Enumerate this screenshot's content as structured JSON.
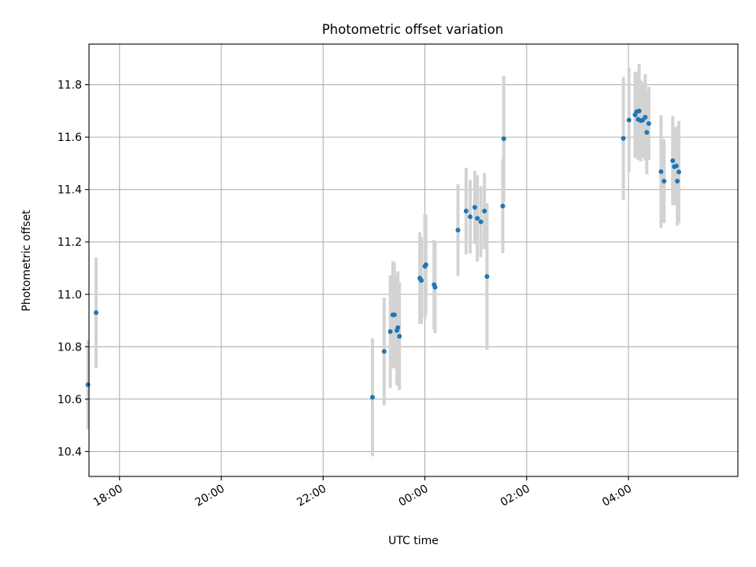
{
  "chart_data": {
    "type": "scatter",
    "title": "Photometric offset variation",
    "xlabel": "UTC time",
    "ylabel": "Photometric offset",
    "grid": true,
    "xlim": [
      -6.6,
      6.15
    ],
    "ylim": [
      10.305,
      11.955
    ],
    "x_ticks": [
      {
        "value": -6,
        "label": "18:00"
      },
      {
        "value": -4,
        "label": "20:00"
      },
      {
        "value": -2,
        "label": "22:00"
      },
      {
        "value": 0,
        "label": "00:00"
      },
      {
        "value": 2,
        "label": "02:00"
      },
      {
        "value": 4,
        "label": "04:00"
      }
    ],
    "y_ticks": [
      {
        "value": 10.4,
        "label": "10.4"
      },
      {
        "value": 10.6,
        "label": "10.6"
      },
      {
        "value": 10.8,
        "label": "10.8"
      },
      {
        "value": 11.0,
        "label": "11.0"
      },
      {
        "value": 11.2,
        "label": "11.2"
      },
      {
        "value": 11.4,
        "label": "11.4"
      },
      {
        "value": 11.6,
        "label": "11.6"
      },
      {
        "value": 11.8,
        "label": "11.8"
      }
    ],
    "x_unit": "hours relative to 00:00 UTC",
    "colors": {
      "point": "#1f77b4",
      "errorbar": "#d3d3d3",
      "grid": "#b0b0b0"
    },
    "points": [
      {
        "x": -6.62,
        "y": 10.655,
        "err": 0.17
      },
      {
        "x": -6.46,
        "y": 10.93,
        "err": 0.21
      },
      {
        "x": -1.03,
        "y": 10.607,
        "err": 0.225
      },
      {
        "x": -0.8,
        "y": 10.782,
        "err": 0.205
      },
      {
        "x": -0.68,
        "y": 10.858,
        "err": 0.215
      },
      {
        "x": -0.63,
        "y": 10.922,
        "err": 0.205
      },
      {
        "x": -0.6,
        "y": 10.922,
        "err": 0.2
      },
      {
        "x": -0.55,
        "y": 10.862,
        "err": 0.21
      },
      {
        "x": -0.53,
        "y": 10.873,
        "err": 0.215
      },
      {
        "x": -0.5,
        "y": 10.84,
        "err": 0.205
      },
      {
        "x": -0.1,
        "y": 11.062,
        "err": 0.175
      },
      {
        "x": -0.07,
        "y": 11.053,
        "err": 0.165
      },
      {
        "x": 0.0,
        "y": 11.107,
        "err": 0.2
      },
      {
        "x": 0.02,
        "y": 11.113,
        "err": 0.19
      },
      {
        "x": 0.18,
        "y": 11.037,
        "err": 0.17
      },
      {
        "x": 0.2,
        "y": 11.027,
        "err": 0.175
      },
      {
        "x": 0.65,
        "y": 11.245,
        "err": 0.175
      },
      {
        "x": 0.81,
        "y": 11.318,
        "err": 0.165
      },
      {
        "x": 0.89,
        "y": 11.296,
        "err": 0.14
      },
      {
        "x": 0.98,
        "y": 11.332,
        "err": 0.14
      },
      {
        "x": 1.03,
        "y": 11.29,
        "err": 0.165
      },
      {
        "x": 1.1,
        "y": 11.277,
        "err": 0.135
      },
      {
        "x": 1.17,
        "y": 11.318,
        "err": 0.145
      },
      {
        "x": 1.22,
        "y": 11.068,
        "err": 0.28
      },
      {
        "x": 1.53,
        "y": 11.337,
        "err": 0.18
      },
      {
        "x": 1.55,
        "y": 11.594,
        "err": 0.24
      },
      {
        "x": 3.9,
        "y": 11.595,
        "err": 0.235
      },
      {
        "x": 4.01,
        "y": 11.665,
        "err": 0.2
      },
      {
        "x": 4.13,
        "y": 11.685,
        "err": 0.165
      },
      {
        "x": 4.16,
        "y": 11.697,
        "err": 0.15
      },
      {
        "x": 4.19,
        "y": 11.668,
        "err": 0.155
      },
      {
        "x": 4.21,
        "y": 11.7,
        "err": 0.18
      },
      {
        "x": 4.24,
        "y": 11.663,
        "err": 0.155
      },
      {
        "x": 4.28,
        "y": 11.665,
        "err": 0.145
      },
      {
        "x": 4.33,
        "y": 11.676,
        "err": 0.165
      },
      {
        "x": 4.36,
        "y": 11.618,
        "err": 0.16
      },
      {
        "x": 4.4,
        "y": 11.652,
        "err": 0.14
      },
      {
        "x": 4.64,
        "y": 11.468,
        "err": 0.215
      },
      {
        "x": 4.7,
        "y": 11.432,
        "err": 0.16
      },
      {
        "x": 4.87,
        "y": 11.51,
        "err": 0.17
      },
      {
        "x": 4.9,
        "y": 11.487,
        "err": 0.145
      },
      {
        "x": 4.94,
        "y": 11.49,
        "err": 0.15
      },
      {
        "x": 4.96,
        "y": 11.432,
        "err": 0.17
      },
      {
        "x": 4.99,
        "y": 11.467,
        "err": 0.195
      }
    ]
  }
}
